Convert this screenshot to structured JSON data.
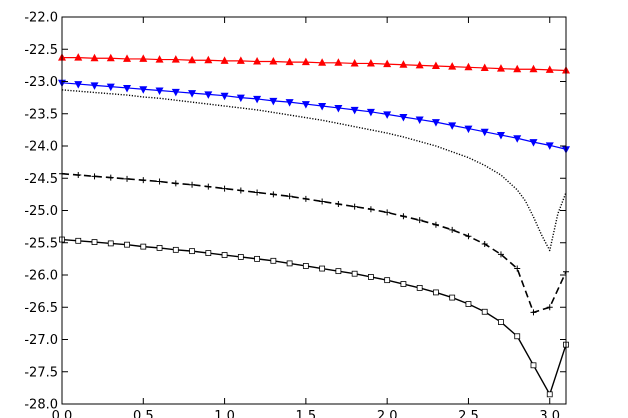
{
  "chart_data": {
    "type": "line",
    "title": "",
    "xlabel": "",
    "ylabel": "",
    "xlim": [
      0.0,
      3.1
    ],
    "ylim": [
      -28.0,
      -22.0
    ],
    "x_ticks": [
      0.0,
      0.5,
      1.0,
      1.5,
      2.0,
      2.5,
      3.0
    ],
    "x_tick_labels": [
      "0.0",
      "0.5",
      "1.0",
      "1.5",
      "2.0",
      "2.5",
      "3.0"
    ],
    "y_ticks": [
      -22.0,
      -22.5,
      -23.0,
      -23.5,
      -24.0,
      -24.5,
      -25.0,
      -25.5,
      -26.0,
      -26.5,
      -27.0,
      -27.5,
      -28.0
    ],
    "y_tick_labels": [
      "-22.0",
      "-22.5",
      "-23.0",
      "-23.5",
      "-24.0",
      "-24.5",
      "-25.0",
      "-25.5",
      "-26.0",
      "-26.5",
      "-27.0",
      "-27.5",
      "-28.0"
    ],
    "grid": false,
    "legend": "none",
    "series": [
      {
        "style": "red-triangle-up",
        "color": "#ff0000",
        "x": [
          0.0,
          0.1,
          0.2,
          0.3,
          0.4,
          0.5,
          0.6,
          0.7,
          0.8,
          0.9,
          1.0,
          1.1,
          1.2,
          1.3,
          1.4,
          1.5,
          1.6,
          1.7,
          1.8,
          1.9,
          2.0,
          2.1,
          2.2,
          2.3,
          2.4,
          2.5,
          2.6,
          2.7,
          2.8,
          2.9,
          3.0,
          3.1
        ],
        "y": [
          -22.63,
          -22.63,
          -22.64,
          -22.64,
          -22.65,
          -22.65,
          -22.66,
          -22.66,
          -22.67,
          -22.67,
          -22.68,
          -22.68,
          -22.69,
          -22.69,
          -22.7,
          -22.7,
          -22.71,
          -22.71,
          -22.72,
          -22.72,
          -22.73,
          -22.74,
          -22.75,
          -22.76,
          -22.77,
          -22.78,
          -22.79,
          -22.8,
          -22.81,
          -22.81,
          -22.82,
          -22.83
        ]
      },
      {
        "style": "blue-triangle-down",
        "color": "#0000ff",
        "x": [
          0.0,
          0.1,
          0.2,
          0.3,
          0.4,
          0.5,
          0.6,
          0.7,
          0.8,
          0.9,
          1.0,
          1.1,
          1.2,
          1.3,
          1.4,
          1.5,
          1.6,
          1.7,
          1.8,
          1.9,
          2.0,
          2.1,
          2.2,
          2.3,
          2.4,
          2.5,
          2.6,
          2.7,
          2.8,
          2.9,
          3.0,
          3.1
        ],
        "y": [
          -23.02,
          -23.04,
          -23.06,
          -23.08,
          -23.1,
          -23.12,
          -23.14,
          -23.16,
          -23.18,
          -23.2,
          -23.22,
          -23.25,
          -23.27,
          -23.3,
          -23.32,
          -23.35,
          -23.38,
          -23.41,
          -23.44,
          -23.47,
          -23.51,
          -23.55,
          -23.59,
          -23.63,
          -23.68,
          -23.73,
          -23.78,
          -23.83,
          -23.88,
          -23.94,
          -23.99,
          -24.05
        ]
      },
      {
        "style": "black-dotted",
        "color": "#000000",
        "x": [
          0.0,
          0.1,
          0.2,
          0.3,
          0.4,
          0.5,
          0.6,
          0.7,
          0.8,
          0.9,
          1.0,
          1.1,
          1.2,
          1.3,
          1.4,
          1.5,
          1.6,
          1.7,
          1.8,
          1.9,
          2.0,
          2.1,
          2.2,
          2.3,
          2.4,
          2.5,
          2.6,
          2.7,
          2.8,
          2.85,
          2.9,
          2.95,
          3.0,
          3.05,
          3.1
        ],
        "y": [
          -23.13,
          -23.15,
          -23.17,
          -23.19,
          -23.21,
          -23.24,
          -23.26,
          -23.29,
          -23.32,
          -23.35,
          -23.38,
          -23.41,
          -23.44,
          -23.48,
          -23.52,
          -23.56,
          -23.6,
          -23.65,
          -23.7,
          -23.75,
          -23.8,
          -23.86,
          -23.93,
          -24.0,
          -24.09,
          -24.18,
          -24.3,
          -24.45,
          -24.68,
          -24.85,
          -25.1,
          -25.38,
          -25.62,
          -25.05,
          -24.72
        ]
      },
      {
        "style": "black-dashed-plus",
        "color": "#000000",
        "x": [
          0.0,
          0.1,
          0.2,
          0.3,
          0.4,
          0.5,
          0.6,
          0.7,
          0.8,
          0.9,
          1.0,
          1.1,
          1.2,
          1.3,
          1.4,
          1.5,
          1.6,
          1.7,
          1.8,
          1.9,
          2.0,
          2.1,
          2.2,
          2.3,
          2.4,
          2.5,
          2.6,
          2.7,
          2.8,
          2.9,
          3.0,
          3.1
        ],
        "y": [
          -24.43,
          -24.45,
          -24.47,
          -24.49,
          -24.51,
          -24.53,
          -24.55,
          -24.58,
          -24.6,
          -24.63,
          -24.66,
          -24.69,
          -24.72,
          -24.75,
          -24.78,
          -24.82,
          -24.86,
          -24.9,
          -24.94,
          -24.98,
          -25.03,
          -25.09,
          -25.15,
          -25.22,
          -25.3,
          -25.4,
          -25.52,
          -25.68,
          -25.9,
          -26.58,
          -26.5,
          -25.95
        ]
      },
      {
        "style": "black-solid-square",
        "color": "#000000",
        "x": [
          0.0,
          0.1,
          0.2,
          0.3,
          0.4,
          0.5,
          0.6,
          0.7,
          0.8,
          0.9,
          1.0,
          1.1,
          1.2,
          1.3,
          1.4,
          1.5,
          1.6,
          1.7,
          1.8,
          1.9,
          2.0,
          2.1,
          2.2,
          2.3,
          2.4,
          2.5,
          2.6,
          2.7,
          2.8,
          2.9,
          3.0,
          3.1
        ],
        "y": [
          -25.45,
          -25.47,
          -25.49,
          -25.51,
          -25.53,
          -25.56,
          -25.58,
          -25.61,
          -25.63,
          -25.66,
          -25.69,
          -25.72,
          -25.75,
          -25.78,
          -25.82,
          -25.86,
          -25.9,
          -25.94,
          -25.98,
          -26.03,
          -26.08,
          -26.14,
          -26.2,
          -26.27,
          -26.35,
          -26.45,
          -26.57,
          -26.73,
          -26.95,
          -27.4,
          -27.85,
          -27.08
        ]
      }
    ]
  }
}
